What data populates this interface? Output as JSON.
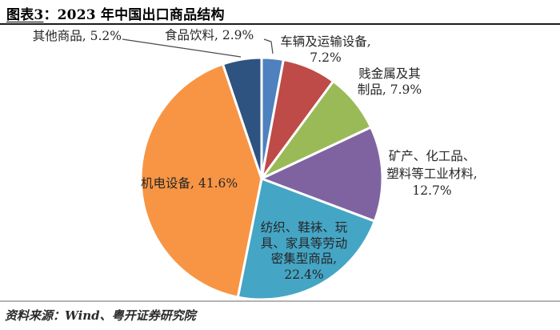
{
  "header": {
    "title_tag": "图表3",
    "title_separator": "：",
    "title_text": "2023 年中国出口商品结构"
  },
  "footer": {
    "source_text": "资料来源：Wind、粤开证券研究院"
  },
  "chart_data": {
    "type": "pie",
    "title": "2023 年中国出口商品结构",
    "unit": "%",
    "start_angle_deg": 0,
    "direction": "clockwise",
    "total_pct": 99.9,
    "legend_position": "none",
    "series": [
      {
        "key": "food",
        "name": "食品饮料",
        "value": 2.9,
        "color": "#4E81BD"
      },
      {
        "key": "vehicles",
        "name": "车辆及运输设备",
        "value": 7.2,
        "color": "#BE4B48"
      },
      {
        "key": "metals",
        "name": "贱金属及其制品",
        "value": 7.9,
        "color": "#9ABA58"
      },
      {
        "key": "minerals",
        "name": "矿产、化工品、塑料等工业材料",
        "value": 12.7,
        "color": "#7F63A1"
      },
      {
        "key": "textiles",
        "name": "纺织、鞋袜、玩具、家具等劳动密集型商品",
        "value": 22.4,
        "color": "#45A5C5"
      },
      {
        "key": "machinery",
        "name": "机电设备",
        "value": 41.6,
        "color": "#F79545"
      },
      {
        "key": "other",
        "name": "其他商品",
        "value": 5.2,
        "color": "#2E5380"
      }
    ],
    "label_lines": {
      "other": [
        "其他商品, 5.2%"
      ],
      "food": [
        "食品饮料, 2.9%"
      ],
      "vehicles": [
        "车辆及运输设备,",
        "7.2%"
      ],
      "metals": [
        "贱金属及其",
        "制品, 7.9%"
      ],
      "minerals": [
        "矿产、化工品、",
        "塑料等工业材料,",
        "12.7%"
      ],
      "textiles": [
        "纺织、鞋袜、玩",
        "具、家具等劳动",
        "密集型商品,",
        "22.4%"
      ],
      "machinery": [
        "机电设备, 41.6%"
      ]
    }
  }
}
